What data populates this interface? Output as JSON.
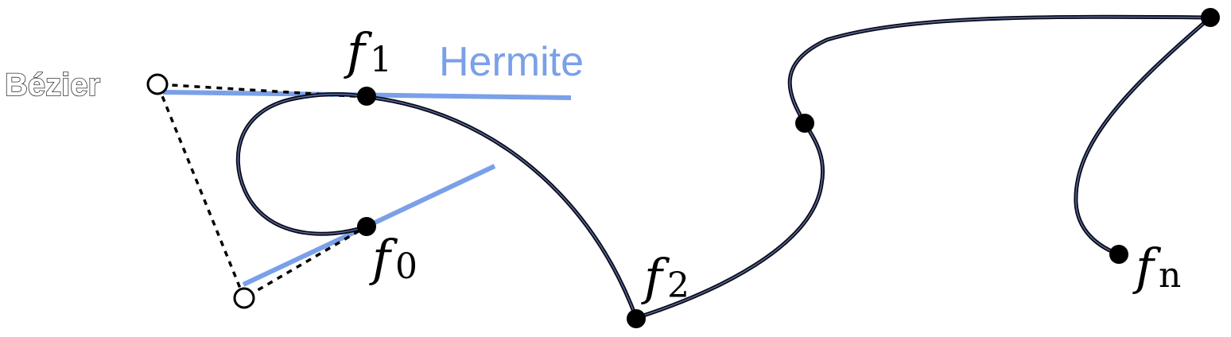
{
  "labels": {
    "bezier": "Bézier",
    "hermite": "Hermite",
    "f0": {
      "base": "f",
      "sub": "0"
    },
    "f1": {
      "base": "f",
      "sub": "1"
    },
    "f2": {
      "base": "f",
      "sub": "2"
    },
    "fn": {
      "base": "f",
      "sub": "n"
    }
  },
  "colors": {
    "curve": "#0a0a1a",
    "curve_inner": "#5b6f9e",
    "hermite": "#7aa0e8",
    "control_polygon": "#000000",
    "node": "#000000",
    "bezier_handle_fill": "#ffffff"
  }
}
